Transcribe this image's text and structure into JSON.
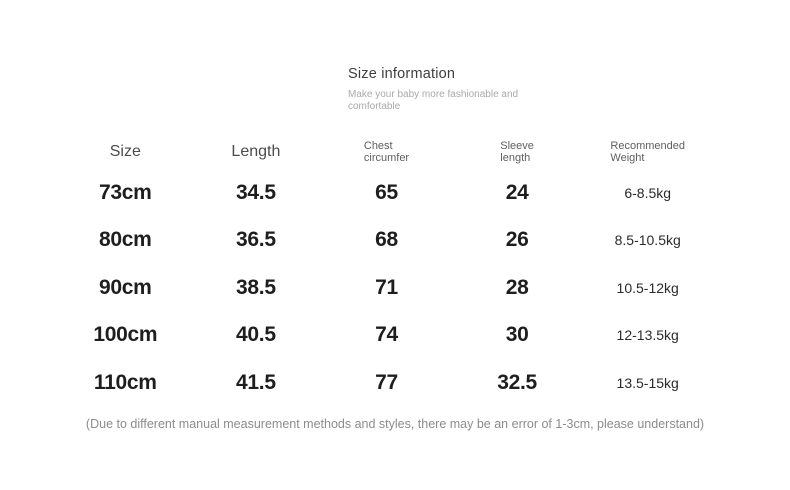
{
  "section": {
    "title": "Size information",
    "subtitle": "Make your baby more fashionable and comfortable"
  },
  "table": {
    "columns": [
      {
        "label": "Size",
        "lines": [
          "Size"
        ]
      },
      {
        "label": "Length",
        "lines": [
          "Length"
        ]
      },
      {
        "label": "Chest circumfer",
        "lines": [
          "Chest",
          "circumfer"
        ]
      },
      {
        "label": "Sleeve length",
        "lines": [
          "Sleeve",
          "length"
        ]
      },
      {
        "label": "Recommended Weight",
        "lines": [
          "Recommended",
          "Weight"
        ]
      }
    ],
    "rows": [
      {
        "size": "73cm",
        "length": "34.5",
        "chest": "65",
        "sleeve": "24",
        "weight": "6-8.5kg"
      },
      {
        "size": "80cm",
        "length": "36.5",
        "chest": "68",
        "sleeve": "26",
        "weight": "8.5-10.5kg"
      },
      {
        "size": "90cm",
        "length": "38.5",
        "chest": "71",
        "sleeve": "28",
        "weight": "10.5-12kg"
      },
      {
        "size": "100cm",
        "length": "40.5",
        "chest": "74",
        "sleeve": "30",
        "weight": "12-13.5kg"
      },
      {
        "size": "110cm",
        "length": "41.5",
        "chest": "77",
        "sleeve": "32.5",
        "weight": "13.5-15kg"
      }
    ]
  },
  "footer": {
    "note": "(Due to different manual measurement methods and styles, there may be an error of 1-3cm, please understand)"
  },
  "colors": {
    "background": "#ffffff",
    "title_text": "#3e3e3e",
    "subtitle_text": "#a9a9a9",
    "header_text": "#5f5f5f",
    "data_text": "#1e1e1e",
    "note_text": "#8c8c8c"
  }
}
